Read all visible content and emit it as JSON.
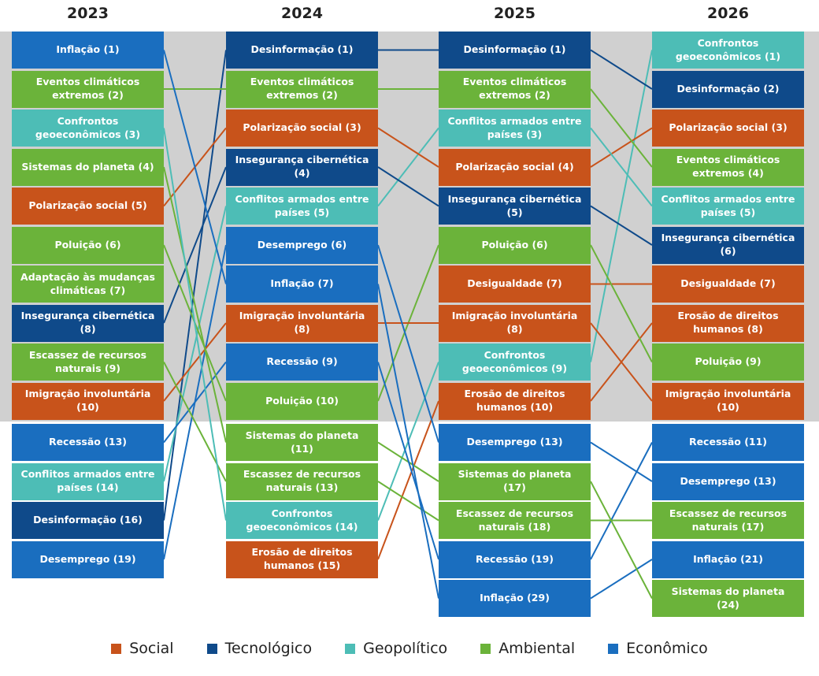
{
  "columns": [
    {
      "year": "2023",
      "items": [
        {
          "label": "Inflação (1)",
          "category": "Econômico"
        },
        {
          "label": "Eventos climáticos extremos (2)",
          "category": "Ambiental"
        },
        {
          "label": "Confrontos geoeconômicos (3)",
          "category": "Geopolítico"
        },
        {
          "label": "Sistemas do planeta (4)",
          "category": "Ambiental"
        },
        {
          "label": "Polarização social (5)",
          "category": "Social"
        },
        {
          "label": "Poluição (6)",
          "category": "Ambiental"
        },
        {
          "label": "Adaptação às mudanças climáticas (7)",
          "category": "Ambiental"
        },
        {
          "label": "Insegurança cibernética (8)",
          "category": "Tecnológico"
        },
        {
          "label": "Escassez de recursos naturais (9)",
          "category": "Ambiental"
        },
        {
          "label": "Imigração involuntária (10)",
          "category": "Social"
        },
        {
          "label": "Recessão (13)",
          "category": "Econômico"
        },
        {
          "label": "Conflitos armados entre países (14)",
          "category": "Geopolítico"
        },
        {
          "label": "Desinformação (16)",
          "category": "Tecnológico"
        },
        {
          "label": "Desemprego (19)",
          "category": "Econômico"
        }
      ]
    },
    {
      "year": "2024",
      "items": [
        {
          "label": "Desinformação (1)",
          "category": "Tecnológico"
        },
        {
          "label": "Eventos climáticos extremos (2)",
          "category": "Ambiental"
        },
        {
          "label": "Polarização social (3)",
          "category": "Social"
        },
        {
          "label": "Insegurança cibernética (4)",
          "category": "Tecnológico"
        },
        {
          "label": "Conflitos armados entre países (5)",
          "category": "Geopolítico"
        },
        {
          "label": "Desemprego (6)",
          "category": "Econômico"
        },
        {
          "label": "Inflação (7)",
          "category": "Econômico"
        },
        {
          "label": "Imigração involuntária (8)",
          "category": "Social"
        },
        {
          "label": "Recessão (9)",
          "category": "Econômico"
        },
        {
          "label": "Poluição (10)",
          "category": "Ambiental"
        },
        {
          "label": "Sistemas do planeta (11)",
          "category": "Ambiental"
        },
        {
          "label": "Escassez de recursos naturais (13)",
          "category": "Ambiental"
        },
        {
          "label": "Confrontos geoeconômicos (14)",
          "category": "Geopolítico"
        },
        {
          "label": "Erosão de direitos humanos (15)",
          "category": "Social"
        }
      ]
    },
    {
      "year": "2025",
      "items": [
        {
          "label": "Desinformação (1)",
          "category": "Tecnológico"
        },
        {
          "label": "Eventos climáticos extremos (2)",
          "category": "Ambiental"
        },
        {
          "label": "Conflitos armados entre países (3)",
          "category": "Geopolítico"
        },
        {
          "label": "Polarização social (4)",
          "category": "Social"
        },
        {
          "label": "Insegurança cibernética (5)",
          "category": "Tecnológico"
        },
        {
          "label": "Poluição (6)",
          "category": "Ambiental"
        },
        {
          "label": "Desigualdade (7)",
          "category": "Social"
        },
        {
          "label": "Imigração involuntária (8)",
          "category": "Social"
        },
        {
          "label": "Confrontos geoeconômicos (9)",
          "category": "Geopolítico"
        },
        {
          "label": "Erosão de direitos humanos (10)",
          "category": "Social"
        },
        {
          "label": "Desemprego (13)",
          "category": "Econômico"
        },
        {
          "label": "Sistemas do planeta (17)",
          "category": "Ambiental"
        },
        {
          "label": "Escassez de recursos naturais (18)",
          "category": "Ambiental"
        },
        {
          "label": "Recessão (19)",
          "category": "Econômico"
        },
        {
          "label": "Inflação (29)",
          "category": "Econômico"
        }
      ]
    },
    {
      "year": "2026",
      "items": [
        {
          "label": "Confrontos geoeconômicos (1)",
          "category": "Geopolítico"
        },
        {
          "label": "Desinformação (2)",
          "category": "Tecnológico"
        },
        {
          "label": "Polarização social (3)",
          "category": "Social"
        },
        {
          "label": "Eventos climáticos extremos (4)",
          "category": "Ambiental"
        },
        {
          "label": "Conflitos armados entre países (5)",
          "category": "Geopolítico"
        },
        {
          "label": "Insegurança cibernética (6)",
          "category": "Tecnológico"
        },
        {
          "label": "Desigualdade (7)",
          "category": "Social"
        },
        {
          "label": "Erosão de direitos humanos (8)",
          "category": "Social"
        },
        {
          "label": "Poluição (9)",
          "category": "Ambiental"
        },
        {
          "label": "Imigração involuntária (10)",
          "category": "Social"
        },
        {
          "label": "Recessão (11)",
          "category": "Econômico"
        },
        {
          "label": "Desemprego (13)",
          "category": "Econômico"
        },
        {
          "label": "Escassez de recursos naturais (17)",
          "category": "Ambiental"
        },
        {
          "label": "Inflação (21)",
          "category": "Econômico"
        },
        {
          "label": "Sistemas do planeta (24)",
          "category": "Ambiental"
        }
      ]
    }
  ],
  "legend": [
    {
      "label": "Social",
      "color": "#c8531b"
    },
    {
      "label": "Tecnológico",
      "color": "#0f4a8a"
    },
    {
      "label": "Geopolítico",
      "color": "#4dbdb6"
    },
    {
      "label": "Ambiental",
      "color": "#6bb33a"
    },
    {
      "label": "Econômico",
      "color": "#1a6ebf"
    }
  ]
}
